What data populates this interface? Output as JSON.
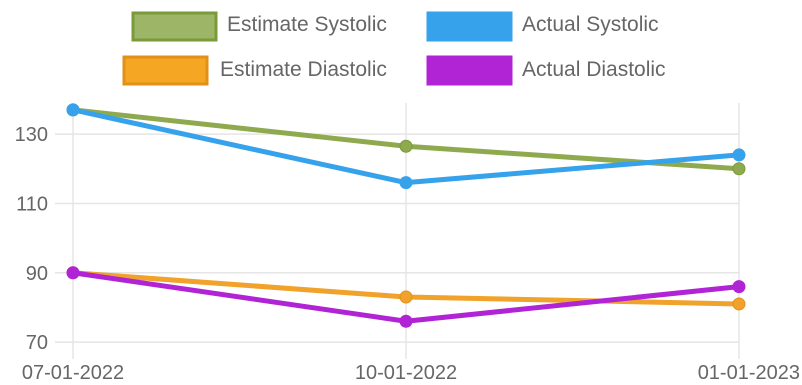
{
  "chart_data": {
    "type": "line",
    "x": [
      "07-01-2022",
      "10-01-2022",
      "01-01-2023"
    ],
    "yticks": [
      70,
      90,
      110,
      130
    ],
    "ylim": [
      68,
      141
    ],
    "grid": true,
    "legend_position": "top",
    "series": [
      {
        "name": "Estimate Systolic",
        "values": [
          137,
          126.5,
          120
        ],
        "color": "#8faa4e",
        "fill": "#9db567",
        "border": "#7a9a3a"
      },
      {
        "name": "Actual Systolic",
        "values": [
          137,
          116,
          124
        ],
        "color": "#36a2eb",
        "fill": "#36a2eb",
        "border": "#36a2eb"
      },
      {
        "name": "Estimate Diastolic",
        "values": [
          90,
          83,
          81
        ],
        "color": "#f0a22b",
        "fill": "#f5a623",
        "border": "#e3901a"
      },
      {
        "name": "Actual Diastolic",
        "values": [
          90,
          76,
          86
        ],
        "color": "#b024d6",
        "fill": "#b024d6",
        "border": "#b024d6"
      }
    ]
  }
}
